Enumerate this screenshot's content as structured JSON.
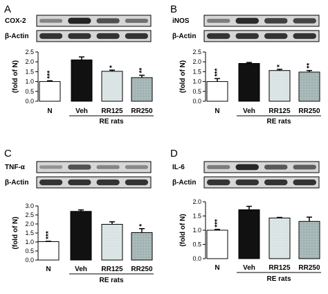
{
  "figure": {
    "panels": [
      {
        "letter": "A",
        "blots": [
          {
            "label": "COX-2",
            "intensities": [
              0.3,
              0.95,
              0.65,
              0.42
            ]
          },
          {
            "label": "β-Actin",
            "intensities": [
              0.85,
              0.85,
              0.85,
              0.85
            ]
          }
        ],
        "group_label": "RE rats"
      },
      {
        "letter": "B",
        "blots": [
          {
            "label": "iNOS",
            "intensities": [
              0.35,
              0.9,
              0.75,
              0.72
            ]
          },
          {
            "label": "β-Actin",
            "intensities": [
              0.85,
              0.85,
              0.85,
              0.85
            ]
          }
        ],
        "group_label": "RE rats"
      },
      {
        "letter": "C",
        "blots": [
          {
            "label": "TNF-α",
            "intensities": [
              0.2,
              0.65,
              0.3,
              0.28
            ]
          },
          {
            "label": "β-Actin",
            "intensities": [
              0.85,
              0.85,
              0.85,
              0.85
            ]
          }
        ],
        "group_label": "RE rats"
      },
      {
        "letter": "D",
        "blots": [
          {
            "label": "IL-6",
            "intensities": [
              0.35,
              0.92,
              0.6,
              0.55
            ]
          },
          {
            "label": "β-Actin",
            "intensities": [
              0.85,
              0.85,
              0.85,
              0.85
            ]
          }
        ],
        "group_label": "RE rats"
      }
    ]
  },
  "colors": {
    "N": "#ffffff",
    "Veh": "#111111",
    "RR125": "#d9e3e3",
    "RR250": "#a3b4b4",
    "blot_band": "#1c1c1c",
    "blot_bg": "#d6d6d6"
  },
  "chart_data": [
    {
      "panel": "A",
      "type": "bar",
      "categories": [
        "N",
        "Veh",
        "RR125",
        "RR250"
      ],
      "values": [
        1.0,
        2.1,
        1.52,
        1.2
      ],
      "errors": [
        0.04,
        0.15,
        0.06,
        0.12
      ],
      "significance": [
        "***",
        "",
        "*",
        "**"
      ],
      "ylabel": "(fold of N)",
      "ylim": [
        0,
        2.5
      ],
      "yticks": [
        "0.0",
        "0.5",
        "1.0",
        "1.5",
        "2.0",
        "2.5"
      ]
    },
    {
      "panel": "B",
      "type": "bar",
      "categories": [
        "N",
        "Veh",
        "RR125",
        "RR250"
      ],
      "values": [
        1.0,
        1.92,
        1.56,
        1.48
      ],
      "errors": [
        0.15,
        0.05,
        0.06,
        0.08
      ],
      "significance": [
        "***",
        "",
        "*",
        "**"
      ],
      "ylabel": "(fold of N)",
      "ylim": [
        0,
        2.5
      ],
      "yticks": [
        "0.0",
        "0.5",
        "1.0",
        "1.5",
        "2.0",
        "2.5"
      ]
    },
    {
      "panel": "C",
      "type": "bar",
      "categories": [
        "N",
        "Veh",
        "RR125",
        "RR250"
      ],
      "values": [
        1.02,
        2.7,
        1.98,
        1.52
      ],
      "errors": [
        0.02,
        0.08,
        0.14,
        0.22
      ],
      "significance": [
        "***",
        "",
        "",
        "*"
      ],
      "ylabel": "(fold of N)",
      "ylim": [
        0,
        3.0
      ],
      "yticks": [
        "0.0",
        "0.5",
        "1.0",
        "1.5",
        "2.0",
        "2.5",
        "3.0"
      ]
    },
    {
      "panel": "D",
      "type": "bar",
      "categories": [
        "N",
        "Veh",
        "RR125",
        "RR250"
      ],
      "values": [
        1.0,
        1.72,
        1.43,
        1.31
      ],
      "errors": [
        0.03,
        0.12,
        0.02,
        0.15
      ],
      "significance": [
        "***",
        "",
        "",
        ""
      ],
      "ylabel": "(fold of N)",
      "ylim": [
        0,
        2.0
      ],
      "yticks": [
        "0.0",
        "0.5",
        "1.0",
        "1.5",
        "2.0"
      ]
    }
  ]
}
